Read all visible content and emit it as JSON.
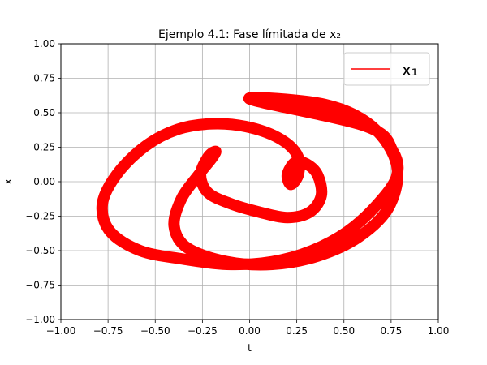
{
  "chart_data": {
    "type": "line",
    "title": "Ejemplo 4.1: Fase límitada de x₂",
    "xlabel": "t",
    "ylabel": "x",
    "xlim": [
      -1.0,
      1.0
    ],
    "ylim": [
      -1.0,
      1.0
    ],
    "xticks": [
      -1.0,
      -0.75,
      -0.5,
      -0.25,
      0.0,
      0.25,
      0.5,
      0.75,
      1.0
    ],
    "yticks": [
      -1.0,
      -0.75,
      -0.5,
      -0.25,
      0.0,
      0.25,
      0.5,
      0.75,
      1.0
    ],
    "xtick_labels": [
      "−1.00",
      "−0.75",
      "−0.50",
      "−0.25",
      "0.00",
      "0.25",
      "0.50",
      "0.75",
      "1.00"
    ],
    "ytick_labels": [
      "−1.00",
      "−0.75",
      "−0.50",
      "−0.25",
      "0.00",
      "0.25",
      "0.50",
      "0.75",
      "1.00"
    ],
    "grid": true,
    "legend_position": "top-right",
    "series": [
      {
        "name": "x₁",
        "color": "#ff0000",
        "x": [
          0.0,
          0.4,
          0.65,
          0.78,
          0.74,
          0.58,
          0.36,
          0.12,
          -0.12,
          -0.33,
          -0.4,
          -0.36,
          -0.27,
          -0.2,
          -0.18,
          -0.22,
          -0.26,
          -0.22,
          -0.1,
          0.05,
          0.2,
          0.32,
          0.38,
          0.36,
          0.3,
          0.24,
          0.2,
          0.22,
          0.26,
          0.25,
          0.15,
          -0.02,
          -0.2,
          -0.38,
          -0.55,
          -0.7,
          -0.78,
          -0.74,
          -0.58,
          -0.36,
          -0.12,
          0.12,
          0.33,
          0.52,
          0.68,
          0.78,
          0.76,
          0.62
        ],
        "y": [
          0.6,
          0.56,
          0.4,
          0.12,
          -0.18,
          -0.4,
          -0.54,
          -0.6,
          -0.58,
          -0.48,
          -0.32,
          -0.12,
          0.05,
          0.17,
          0.22,
          0.18,
          0.05,
          -0.08,
          -0.16,
          -0.22,
          -0.26,
          -0.22,
          -0.1,
          0.05,
          0.13,
          0.14,
          0.05,
          -0.02,
          0.06,
          0.2,
          0.32,
          0.4,
          0.42,
          0.38,
          0.26,
          0.06,
          -0.16,
          -0.36,
          -0.5,
          -0.56,
          -0.6,
          -0.58,
          -0.5,
          -0.36,
          -0.16,
          0.04,
          0.22,
          0.4
        ]
      }
    ]
  }
}
